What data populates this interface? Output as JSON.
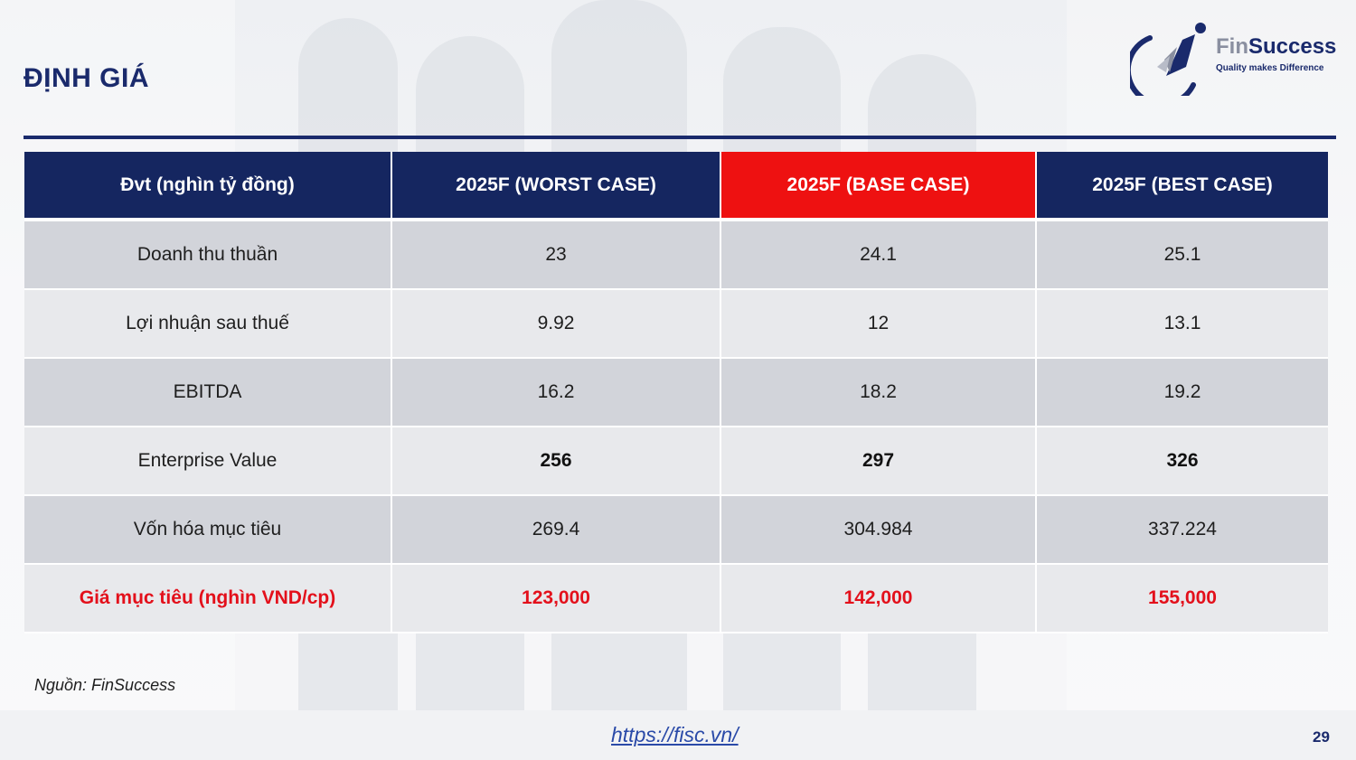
{
  "slide": {
    "title": "ĐỊNH GIÁ",
    "source_note": "Nguồn: FinSuccess",
    "footer_link": "https://fisc.vn/",
    "page_number": "29"
  },
  "logo": {
    "brand_part1": "Fin",
    "brand_part2": "Success",
    "tagline": "Quality makes Difference"
  },
  "table": {
    "headers": [
      "Đvt (nghìn tỷ đồng)",
      "2025F (WORST CASE)",
      "2025F (BASE CASE)",
      "2025F (BEST CASE)"
    ],
    "rows": [
      {
        "label": "Doanh thu thuần",
        "values": [
          "23",
          "24.1",
          "25.1"
        ]
      },
      {
        "label": "Lợi nhuận sau thuế",
        "values": [
          "9.92",
          "12",
          "13.1"
        ]
      },
      {
        "label": "EBITDA",
        "values": [
          "16.2",
          "18.2",
          "19.2"
        ]
      },
      {
        "label": "Enterprise Value",
        "values": [
          "256",
          "297",
          "326"
        ]
      },
      {
        "label": "Vốn hóa mục tiêu",
        "values": [
          "269.4",
          "304.984",
          "337.224"
        ]
      },
      {
        "label": "Giá mục tiêu (nghìn VND/cp)",
        "values": [
          "123,000",
          "142,000",
          "155,000"
        ]
      }
    ]
  },
  "colors": {
    "navy": "#152660",
    "highlight_red": "#ee1111",
    "target_red": "#e3101b"
  }
}
